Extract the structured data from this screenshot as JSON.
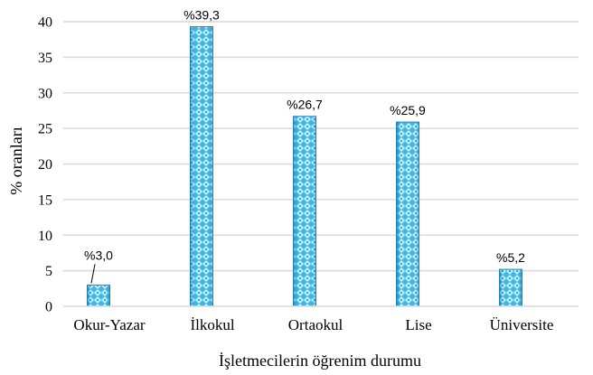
{
  "chart_data": {
    "type": "bar",
    "title": "",
    "xlabel": "İşletmecilerin öğrenim durumu",
    "ylabel": "% oranları",
    "categories": [
      "Okur-Yazar",
      "İlkokul",
      "Ortaokul",
      "Lise",
      "Üniversite"
    ],
    "values": [
      3.0,
      39.3,
      26.7,
      25.9,
      5.2
    ],
    "data_labels": [
      "%3,0",
      "%39,3",
      "%26,7",
      "%25,9",
      "%5,2"
    ],
    "ylim": [
      0,
      40
    ],
    "yticks": [
      "0",
      "5",
      "10",
      "15",
      "20",
      "25",
      "30",
      "35",
      "40"
    ],
    "grid": true,
    "legend": "none",
    "colors": {
      "bar_light": "#b8ecfb",
      "bar_dark": "#3fb8e8",
      "bar_edge": "#1e8fc4",
      "grid": "#d9d9d9",
      "axis": "#000000"
    }
  }
}
